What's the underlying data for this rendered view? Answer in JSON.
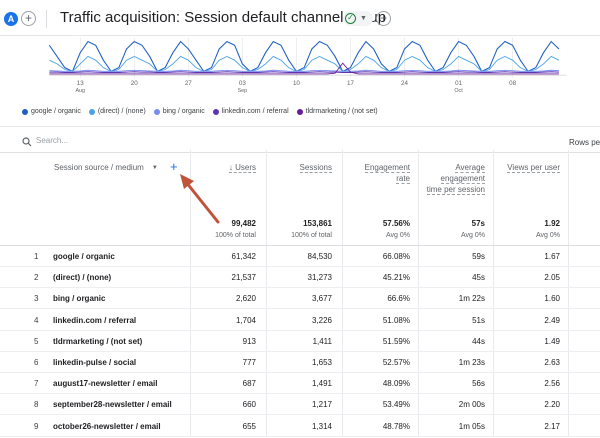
{
  "header": {
    "avatar_letter": "A",
    "title": "Traffic acquisition: Session default channel group"
  },
  "chart_data": {
    "type": "line",
    "x_ticks": [
      {
        "label": "13",
        "sub": "Aug",
        "day": 13
      },
      {
        "label": "20",
        "sub": "",
        "day": 20
      },
      {
        "label": "27",
        "sub": "",
        "day": 27
      },
      {
        "label": "03",
        "sub": "Sep",
        "day": 34
      },
      {
        "label": "10",
        "sub": "",
        "day": 41
      },
      {
        "label": "17",
        "sub": "",
        "day": 48
      },
      {
        "label": "24",
        "sub": "",
        "day": 55
      },
      {
        "label": "01",
        "sub": "Oct",
        "day": 62
      },
      {
        "label": "08",
        "sub": "",
        "day": 69
      }
    ],
    "xlim": [
      9,
      76
    ],
    "ylim": [
      0,
      10
    ],
    "series": [
      {
        "name": "google / organic",
        "color": "#1f5fc4",
        "values": [
          8,
          5,
          2,
          1,
          6,
          9,
          8,
          4,
          1,
          2,
          7,
          9,
          8,
          5,
          1,
          2,
          6,
          9,
          7,
          4,
          1,
          2,
          7,
          9,
          8,
          3,
          1,
          2,
          6,
          9,
          8,
          4,
          1,
          2,
          7,
          9,
          8,
          5,
          1,
          2,
          6,
          9,
          7,
          3,
          1,
          2,
          7,
          9,
          8,
          4,
          1,
          2,
          6,
          9,
          8,
          5,
          1,
          2,
          7,
          9,
          8,
          4,
          1,
          2,
          6,
          9,
          7
        ]
      },
      {
        "name": "(direct) / (none)",
        "color": "#4aa3e6",
        "values": [
          4,
          3,
          1.5,
          1,
          3,
          5,
          4,
          2,
          1,
          1.5,
          4,
          5,
          4,
          3,
          1,
          1.5,
          3,
          5,
          4,
          2,
          1,
          1.5,
          4,
          5,
          4,
          2,
          1,
          1.5,
          3,
          5,
          4,
          2,
          1,
          1.5,
          4,
          5,
          4,
          3,
          1,
          1.5,
          3,
          5,
          4,
          2,
          1,
          1.5,
          4,
          5,
          4,
          2,
          1,
          1.5,
          3,
          5,
          4,
          3,
          1,
          1.5,
          4,
          5,
          4,
          2,
          1,
          1.5,
          3,
          5,
          4
        ]
      },
      {
        "name": "bing / organic",
        "color": "#7b8cf0",
        "values": [
          1.2,
          1.1,
          1,
          1,
          1.1,
          1.3,
          1.2,
          1,
          1,
          1,
          1.2,
          1.3,
          1.2,
          1.1,
          1,
          1,
          1.1,
          1.3,
          1.2,
          1,
          1,
          1,
          1.2,
          1.3,
          1.2,
          1,
          1,
          1,
          1.1,
          1.3,
          1.2,
          1,
          1,
          1,
          1.2,
          1.3,
          1.2,
          1.1,
          1,
          1,
          1.1,
          1.3,
          1.2,
          1,
          1,
          1,
          1.2,
          1.3,
          1.2,
          1,
          1,
          1,
          1.1,
          1.3,
          1.2,
          1.1,
          1,
          1,
          1.2,
          1.3,
          1.2,
          1,
          1,
          1,
          1.1,
          1.3,
          1.2
        ]
      },
      {
        "name": "linkedin.com / referral",
        "color": "#5e35b1",
        "values": [
          0.8,
          0.8,
          0.7,
          0.7,
          0.8,
          0.9,
          0.8,
          0.7,
          0.7,
          0.7,
          0.8,
          0.9,
          0.8,
          0.8,
          0.7,
          0.7,
          0.8,
          0.9,
          0.8,
          0.7,
          0.7,
          0.7,
          0.8,
          0.9,
          0.8,
          0.7,
          0.7,
          0.7,
          0.8,
          0.9,
          0.8,
          0.7,
          0.7,
          0.7,
          0.8,
          0.9,
          0.8,
          0.8,
          0.7,
          0.7,
          0.8,
          0.9,
          0.8,
          0.7,
          0.7,
          0.7,
          0.8,
          0.9,
          0.8,
          0.7,
          0.7,
          0.7,
          0.8,
          0.9,
          0.8,
          0.8,
          0.7,
          0.7,
          0.8,
          0.9,
          0.8,
          0.7,
          0.7,
          0.7,
          0.8,
          0.9,
          0.8
        ]
      },
      {
        "name": "tldrmarketing / (not set)",
        "color": "#6a1b9a",
        "values": [
          0.3,
          0.3,
          0.3,
          0.3,
          0.3,
          0.3,
          0.3,
          0.3,
          0.3,
          0.3,
          0.3,
          0.3,
          0.3,
          0.3,
          0.3,
          0.3,
          0.3,
          0.3,
          0.3,
          0.3,
          0.3,
          0.3,
          0.3,
          0.3,
          0.3,
          0.3,
          0.3,
          0.3,
          0.3,
          0.3,
          0.3,
          0.3,
          0.3,
          0.3,
          0.3,
          0.3,
          0.3,
          0.5,
          3.2,
          0.8,
          0.3,
          0.3,
          0.3,
          0.3,
          0.3,
          0.3,
          0.3,
          0.3,
          0.3,
          0.3,
          0.3,
          0.3,
          0.3,
          0.3,
          0.3,
          0.3,
          0.3,
          0.3,
          0.3,
          0.3,
          0.3,
          0.3,
          0.3,
          0.3,
          0.3,
          0.3,
          0.3
        ]
      }
    ]
  },
  "search": {
    "placeholder": "Search..."
  },
  "rows_per_page_label": "Rows pe",
  "table": {
    "dimension_header": "Session source / medium",
    "columns": [
      {
        "label": "↓ Users",
        "total": "99,482",
        "total_sub": "100% of total"
      },
      {
        "label": "Sessions",
        "total": "153,861",
        "total_sub": "100% of total"
      },
      {
        "label": "Engagement rate",
        "total": "57.56%",
        "total_sub": "Avg 0%"
      },
      {
        "label": "Average engagement time per session",
        "total": "57s",
        "total_sub": "Avg 0%"
      },
      {
        "label": "Views per user",
        "total": "1.92",
        "total_sub": "Avg 0%"
      }
    ],
    "rows": [
      {
        "idx": "1",
        "dim": "google / organic",
        "v": [
          "61,342",
          "84,530",
          "66.08%",
          "59s",
          "1.67"
        ]
      },
      {
        "idx": "2",
        "dim": "(direct) / (none)",
        "v": [
          "21,537",
          "31,273",
          "45.21%",
          "45s",
          "2.05"
        ]
      },
      {
        "idx": "3",
        "dim": "bing / organic",
        "v": [
          "2,620",
          "3,677",
          "66.6%",
          "1m 22s",
          "1.60"
        ]
      },
      {
        "idx": "4",
        "dim": "linkedin.com / referral",
        "v": [
          "1,704",
          "3,226",
          "51.08%",
          "51s",
          "2.49"
        ]
      },
      {
        "idx": "5",
        "dim": "tldrmarketing / (not set)",
        "v": [
          "913",
          "1,411",
          "51.59%",
          "44s",
          "1.49"
        ]
      },
      {
        "idx": "6",
        "dim": "linkedin-pulse / social",
        "v": [
          "777",
          "1,653",
          "52.57%",
          "1m 23s",
          "2.63"
        ]
      },
      {
        "idx": "7",
        "dim": "august17-newsletter / email",
        "v": [
          "687",
          "1,491",
          "48.09%",
          "56s",
          "2.56"
        ]
      },
      {
        "idx": "8",
        "dim": "september28-newsletter / email",
        "v": [
          "660",
          "1,217",
          "53.49%",
          "2m 00s",
          "2.20"
        ]
      },
      {
        "idx": "9",
        "dim": "october26-newsletter / email",
        "v": [
          "655",
          "1,314",
          "48.78%",
          "1m 05s",
          "2.17"
        ]
      }
    ]
  },
  "colors": {
    "accent": "#1a73e8",
    "arrow": "#c0533a"
  }
}
